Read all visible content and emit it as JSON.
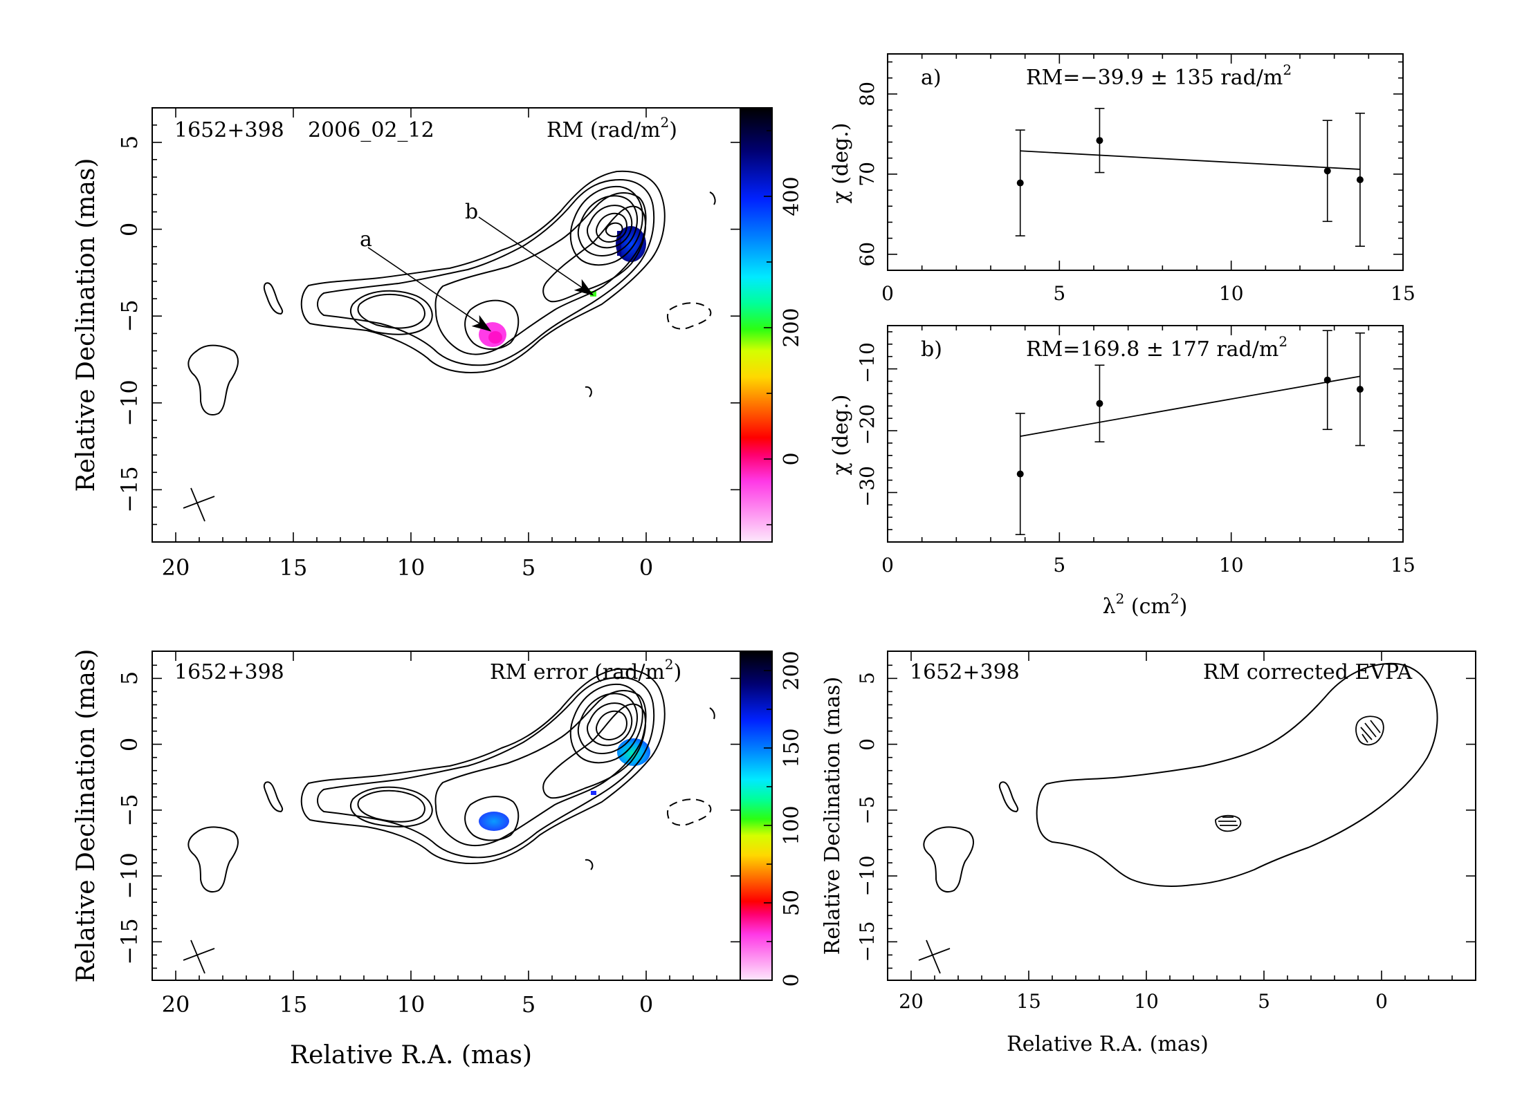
{
  "maps": {
    "rm": {
      "source": "1652+398",
      "epoch": "2006_02_12",
      "quantity": "RM (rad/m",
      "quantity_exp": "2",
      "quantity_tail": ")",
      "xlabel": "",
      "ylabel": "Relative Declination (mas)",
      "xticks": [
        "20",
        "15",
        "10",
        "5",
        "0"
      ],
      "yticks": [
        "5",
        "0",
        "−5",
        "−10",
        "−15"
      ],
      "colorbar_ticks": [
        "0",
        "200",
        "400"
      ],
      "arrow_a": "a",
      "arrow_b": "b"
    },
    "rm_error": {
      "source": "1652+398",
      "quantity": "RM error (rad/m",
      "quantity_exp": "2",
      "quantity_tail": ")",
      "xlabel": "Relative R.A. (mas)",
      "ylabel": "Relative Declination (mas)",
      "xticks": [
        "20",
        "15",
        "10",
        "5",
        "0"
      ],
      "yticks": [
        "5",
        "0",
        "−5",
        "−10",
        "−15"
      ],
      "colorbar_ticks": [
        "0",
        "50",
        "100",
        "150",
        "200"
      ]
    },
    "evpa": {
      "source": "1652+398",
      "quantity": "RM corrected EVPA",
      "xlabel": "Relative R.A. (mas)",
      "ylabel": "Relative Declination (mas)",
      "xticks": [
        "20",
        "15",
        "10",
        "5",
        "0"
      ],
      "yticks": [
        "5",
        "0",
        "−5",
        "−10",
        "−15"
      ]
    }
  },
  "fits": {
    "a": {
      "label": "a)",
      "rm_text": "RM=−39.9 ± 135 rad/m",
      "rm_exp": "2",
      "ylabel": "χ (deg.)",
      "xticks": [
        "0",
        "5",
        "10",
        "15"
      ],
      "yticks": [
        "60",
        "70",
        "80"
      ]
    },
    "b": {
      "label": "b)",
      "rm_text": "RM=169.8 ± 177 rad/m",
      "rm_exp": "2",
      "ylabel": "χ (deg.)",
      "xticks": [
        "0",
        "5",
        "10",
        "15"
      ],
      "yticks": [
        "−30",
        "−20",
        "−10"
      ],
      "xlabel_base": "λ",
      "xlabel_exp": "2",
      "xlabel_tail": " (cm",
      "xlabel_exp2": "2",
      "xlabel_end": ")"
    }
  },
  "chart_data": [
    {
      "type": "scatter",
      "title": "a)",
      "ylabel": "χ (deg.)",
      "xlim": [
        0,
        15
      ],
      "ylim": [
        58,
        85
      ],
      "points": [
        {
          "x": 3.86,
          "y": 68.9,
          "yerr": 6.6
        },
        {
          "x": 6.17,
          "y": 74.2,
          "yerr": 4.0
        },
        {
          "x": 12.8,
          "y": 70.4,
          "yerr": 6.3
        },
        {
          "x": 13.75,
          "y": 69.3,
          "yerr": 8.3
        }
      ],
      "fit_line": [
        [
          3.86,
          72.9
        ],
        [
          13.75,
          70.6
        ]
      ],
      "annotation": "RM=−39.9 ± 135 rad/m2"
    },
    {
      "type": "scatter",
      "title": "b)",
      "ylabel": "χ (deg.)",
      "xlabel": "λ2 (cm2)",
      "xlim": [
        0,
        15
      ],
      "ylim": [
        -38,
        -3
      ],
      "points": [
        {
          "x": 3.86,
          "y": -27.0,
          "yerr": 9.8
        },
        {
          "x": 6.17,
          "y": -15.6,
          "yerr": 6.2
        },
        {
          "x": 12.8,
          "y": -11.8,
          "yerr": 8.0
        },
        {
          "x": 13.75,
          "y": -13.3,
          "yerr": 9.1
        }
      ],
      "fit_line": [
        [
          3.86,
          -20.9
        ],
        [
          13.75,
          -11.2
        ]
      ],
      "annotation": "RM=169.8 ± 177 rad/m2"
    }
  ]
}
